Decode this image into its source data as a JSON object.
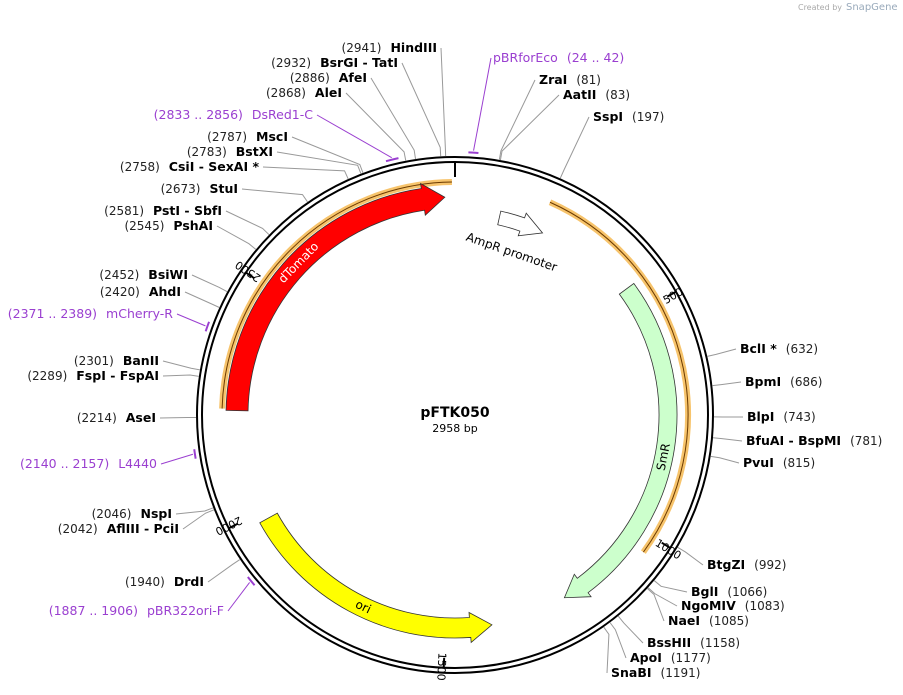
{
  "credit": {
    "prefix": "Created by",
    "brand": "SnapGene"
  },
  "plasmid": {
    "name": "pFTK050",
    "length": {
      "value": 2958,
      "label": "2958 bp"
    }
  },
  "ticks": [
    500,
    1000,
    1500,
    2000,
    2500
  ],
  "sites": [
    {
      "name": "HindIII",
      "pos": {
        "value": 2941,
        "label": "(2941)"
      }
    },
    {
      "name": "BsrGI - TatI",
      "pos": {
        "value": 2932,
        "label": "(2932)"
      }
    },
    {
      "name": "AfeI",
      "pos": {
        "value": 2886,
        "label": "(2886)"
      }
    },
    {
      "name": "AleI",
      "pos": {
        "value": 2868,
        "label": "(2868)"
      }
    },
    {
      "name": "MscI",
      "pos": {
        "value": 2787,
        "label": "(2787)"
      }
    },
    {
      "name": "BstXI",
      "pos": {
        "value": 2783,
        "label": "(2783)"
      }
    },
    {
      "name": "CsiI - SexAI *",
      "pos": {
        "value": 2758,
        "label": "(2758)"
      }
    },
    {
      "name": "StuI",
      "pos": {
        "value": 2673,
        "label": "(2673)"
      }
    },
    {
      "name": "PstI - SbfI",
      "pos": {
        "value": 2581,
        "label": "(2581)"
      }
    },
    {
      "name": "PshAI",
      "pos": {
        "value": 2545,
        "label": "(2545)"
      }
    },
    {
      "name": "BsiWI",
      "pos": {
        "value": 2452,
        "label": "(2452)"
      }
    },
    {
      "name": "AhdI",
      "pos": {
        "value": 2420,
        "label": "(2420)"
      }
    },
    {
      "name": "BanII",
      "pos": {
        "value": 2301,
        "label": "(2301)"
      }
    },
    {
      "name": "FspI - FspAI",
      "pos": {
        "value": 2289,
        "label": "(2289)"
      }
    },
    {
      "name": "AseI",
      "pos": {
        "value": 2214,
        "label": "(2214)"
      }
    },
    {
      "name": "NspI",
      "pos": {
        "value": 2046,
        "label": "(2046)"
      }
    },
    {
      "name": "AflIII - PciI",
      "pos": {
        "value": 2042,
        "label": "(2042)"
      }
    },
    {
      "name": "DrdI",
      "pos": {
        "value": 1940,
        "label": "(1940)"
      }
    },
    {
      "name": "ZraI",
      "pos": {
        "value": 81,
        "label": "(81)"
      }
    },
    {
      "name": "AatII",
      "pos": {
        "value": 83,
        "label": "(83)"
      }
    },
    {
      "name": "SspI",
      "pos": {
        "value": 197,
        "label": "(197)"
      }
    },
    {
      "name": "BclI *",
      "pos": {
        "value": 632,
        "label": "(632)"
      }
    },
    {
      "name": "BpmI",
      "pos": {
        "value": 686,
        "label": "(686)"
      }
    },
    {
      "name": "BlpI",
      "pos": {
        "value": 743,
        "label": "(743)"
      }
    },
    {
      "name": "BfuAI - BspMI",
      "pos": {
        "value": 781,
        "label": "(781)"
      }
    },
    {
      "name": "PvuI",
      "pos": {
        "value": 815,
        "label": "(815)"
      }
    },
    {
      "name": "BtgZI",
      "pos": {
        "value": 992,
        "label": "(992)"
      }
    },
    {
      "name": "BglI",
      "pos": {
        "value": 1066,
        "label": "(1066)"
      }
    },
    {
      "name": "NgoMIV",
      "pos": {
        "value": 1083,
        "label": "(1083)"
      }
    },
    {
      "name": "NaeI",
      "pos": {
        "value": 1085,
        "label": "(1085)"
      }
    },
    {
      "name": "BssHII",
      "pos": {
        "value": 1158,
        "label": "(1158)"
      }
    },
    {
      "name": "ApoI",
      "pos": {
        "value": 1177,
        "label": "(1177)"
      }
    },
    {
      "name": "SnaBI",
      "pos": {
        "value": 1191,
        "label": "(1191)"
      }
    }
  ],
  "primers": [
    {
      "name": "pBRforEco",
      "range": {
        "start": 24,
        "end": 42,
        "label": "(24 .. 42)"
      }
    },
    {
      "name": "DsRed1-C",
      "range": {
        "start": 2833,
        "end": 2856,
        "label": "(2833 .. 2856)"
      }
    },
    {
      "name": "mCherry-R",
      "range": {
        "start": 2371,
        "end": 2389,
        "label": "(2371 .. 2389)"
      }
    },
    {
      "name": "L4440",
      "range": {
        "start": 2140,
        "end": 2157,
        "label": "(2140 .. 2157)"
      }
    },
    {
      "name": "pBR322ori-F",
      "range": {
        "start": 1887,
        "end": 1906,
        "label": "(1887 .. 1906)"
      }
    }
  ],
  "features": [
    {
      "name": "dTomato",
      "start": 2228,
      "end": 2936,
      "direction": "cw",
      "color": "#ff0000",
      "text_color": "#ffffff"
    },
    {
      "name": "AmpR promoter",
      "start": 104,
      "end": 211,
      "direction": "cw",
      "color": "#ffffff",
      "text_color": "#000000"
    },
    {
      "name": "SmR",
      "start": 441,
      "end": 1225,
      "direction": "cw",
      "color": "#ccffcc",
      "text_color": "#000000"
    },
    {
      "name": "ori",
      "start": 1397,
      "end": 1981,
      "direction": "ccw",
      "color": "#ffff00",
      "text_color": "#000000"
    }
  ]
}
